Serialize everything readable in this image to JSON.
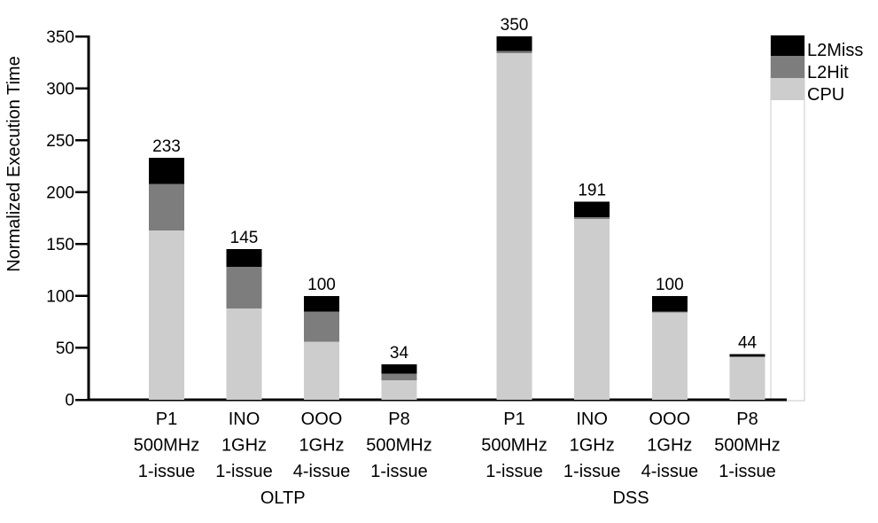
{
  "chart_data": {
    "type": "bar",
    "subtype": "stacked-vertical",
    "title": "",
    "ylabel": "Normalized Execution Time",
    "xlabel": "",
    "ylim": [
      0,
      350
    ],
    "yticks": [
      0,
      50,
      100,
      150,
      200,
      250,
      300,
      350
    ],
    "grid": false,
    "legend_position": "top-right",
    "series_order_bottom_to_top": [
      "CPU",
      "L2Hit",
      "L2Miss"
    ],
    "colors": {
      "CPU": "#cdcdcd",
      "L2Hit": "#7d7d7d",
      "L2Miss": "#000000"
    },
    "legend": [
      {
        "label": "L2Miss",
        "color": "#000000"
      },
      {
        "label": "L2Hit",
        "color": "#7d7d7d"
      },
      {
        "label": "CPU",
        "color": "#cdcdcd"
      }
    ],
    "groups": [
      {
        "label": "OLTP",
        "bars": [
          {
            "lines": [
              "P1",
              "500MHz",
              "1-issue"
            ],
            "total": 233,
            "segments": {
              "CPU": 163,
              "L2Hit": 45,
              "L2Miss": 25
            }
          },
          {
            "lines": [
              "INO",
              "1GHz",
              "1-issue"
            ],
            "total": 145,
            "segments": {
              "CPU": 88,
              "L2Hit": 40,
              "L2Miss": 17
            }
          },
          {
            "lines": [
              "OOO",
              "1GHz",
              "4-issue"
            ],
            "total": 100,
            "segments": {
              "CPU": 56,
              "L2Hit": 29,
              "L2Miss": 15
            }
          },
          {
            "lines": [
              "P8",
              "500MHz",
              "1-issue"
            ],
            "total": 34,
            "segments": {
              "CPU": 19,
              "L2Hit": 6,
              "L2Miss": 9
            }
          }
        ]
      },
      {
        "label": "DSS",
        "bars": [
          {
            "lines": [
              "P1",
              "500MHz",
              "1-issue"
            ],
            "total": 350,
            "segments": {
              "CPU": 334,
              "L2Hit": 2,
              "L2Miss": 14
            }
          },
          {
            "lines": [
              "INO",
              "1GHz",
              "1-issue"
            ],
            "total": 191,
            "segments": {
              "CPU": 174,
              "L2Hit": 2,
              "L2Miss": 15
            }
          },
          {
            "lines": [
              "OOO",
              "1GHz",
              "4-issue"
            ],
            "total": 100,
            "segments": {
              "CPU": 84,
              "L2Hit": 1,
              "L2Miss": 15
            }
          },
          {
            "lines": [
              "P8",
              "500MHz",
              "1-issue"
            ],
            "total": 44,
            "segments": {
              "CPU": 41,
              "L2Hit": 1,
              "L2Miss": 2
            }
          }
        ]
      }
    ]
  }
}
